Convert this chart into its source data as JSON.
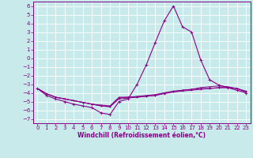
{
  "xlabel": "Windchill (Refroidissement éolien,°C)",
  "xlim": [
    -0.5,
    23.5
  ],
  "ylim": [
    -7.5,
    6.5
  ],
  "yticks": [
    6,
    5,
    4,
    3,
    2,
    1,
    0,
    -1,
    -2,
    -3,
    -4,
    -5,
    -6,
    -7
  ],
  "xticks": [
    0,
    1,
    2,
    3,
    4,
    5,
    6,
    7,
    8,
    9,
    10,
    11,
    12,
    13,
    14,
    15,
    16,
    17,
    18,
    19,
    20,
    21,
    22,
    23
  ],
  "bg_color": "#c8eaea",
  "line_color": "#880088",
  "line1_x": [
    0,
    1,
    2,
    3,
    4,
    5,
    6,
    7,
    8,
    9,
    10,
    11,
    12,
    13,
    14,
    15,
    16,
    17,
    18,
    19,
    20,
    21,
    22,
    23
  ],
  "line1_y": [
    -3.5,
    -4.3,
    -4.7,
    -5.0,
    -5.3,
    -5.5,
    -5.7,
    -6.3,
    -6.5,
    -5.0,
    -4.7,
    -3.0,
    -0.8,
    1.8,
    4.3,
    6.0,
    3.6,
    3.0,
    -0.2,
    -2.5,
    -3.1,
    -3.4,
    -3.7,
    -4.0
  ],
  "line2_x": [
    0,
    1,
    2,
    3,
    4,
    5,
    6,
    7,
    8,
    9,
    10,
    11,
    12,
    13,
    14,
    15,
    16,
    17,
    18,
    19,
    20,
    21,
    22,
    23
  ],
  "line2_y": [
    -3.5,
    -4.1,
    -4.5,
    -4.7,
    -4.9,
    -5.1,
    -5.3,
    -5.5,
    -5.6,
    -4.7,
    -4.6,
    -4.5,
    -4.4,
    -4.3,
    -4.0,
    -3.8,
    -3.7,
    -3.6,
    -3.5,
    -3.5,
    -3.4,
    -3.4,
    -3.5,
    -3.8
  ],
  "line3_x": [
    0,
    1,
    2,
    3,
    4,
    5,
    6,
    7,
    8,
    9,
    10,
    11,
    12,
    13,
    14,
    15,
    16,
    17,
    18,
    19,
    20,
    21,
    22,
    23
  ],
  "line3_y": [
    -3.5,
    -4.1,
    -4.5,
    -4.7,
    -4.9,
    -5.1,
    -5.3,
    -5.5,
    -5.6,
    -4.6,
    -4.5,
    -4.5,
    -4.4,
    -4.3,
    -4.1,
    -3.9,
    -3.8,
    -3.7,
    -3.6,
    -3.5,
    -3.4,
    -3.4,
    -3.5,
    -3.9
  ],
  "line4_x": [
    0,
    1,
    2,
    3,
    4,
    5,
    6,
    7,
    8,
    9,
    10,
    11,
    12,
    13,
    14,
    15,
    16,
    17,
    18,
    19,
    20,
    21,
    22,
    23
  ],
  "line4_y": [
    -3.5,
    -4.1,
    -4.5,
    -4.7,
    -4.9,
    -5.1,
    -5.3,
    -5.4,
    -5.5,
    -4.5,
    -4.5,
    -4.4,
    -4.3,
    -4.2,
    -4.0,
    -3.9,
    -3.7,
    -3.6,
    -3.4,
    -3.3,
    -3.2,
    -3.3,
    -3.5,
    -3.9
  ],
  "tick_fontsize": 5.0,
  "xlabel_fontsize": 5.5,
  "grid_color": "#aadddd",
  "spine_color": "#880088"
}
